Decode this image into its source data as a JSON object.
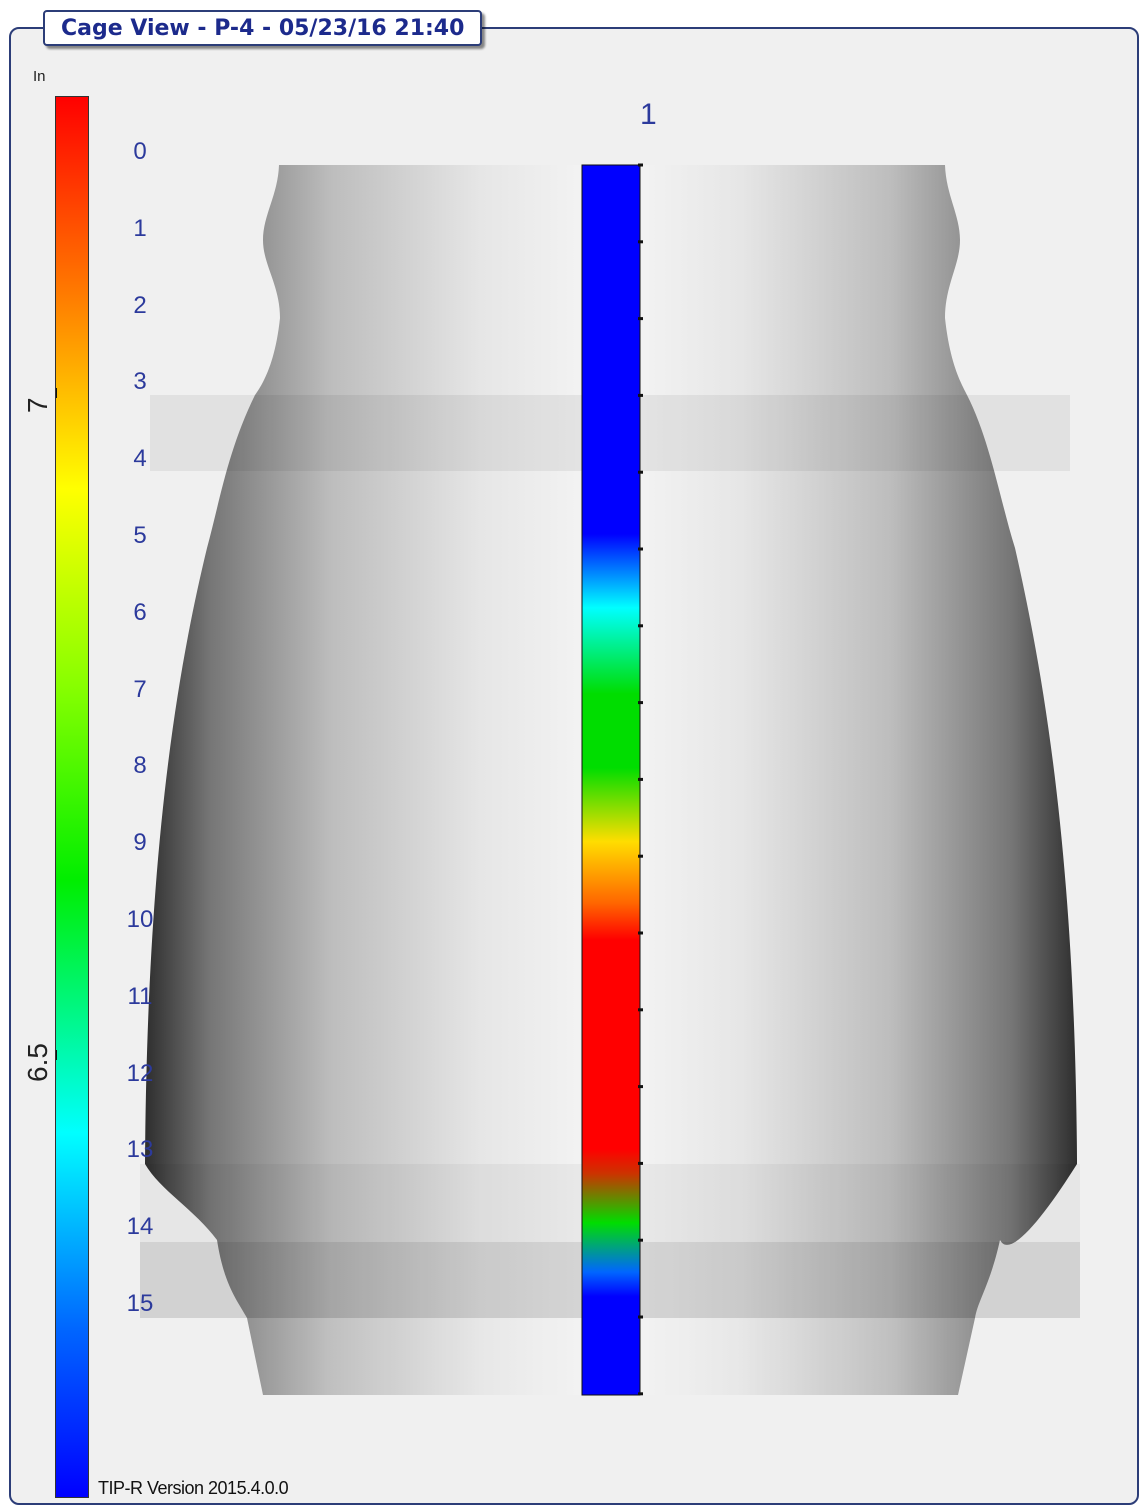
{
  "title": "Cage View - P-4 - 05/23/16 21:40",
  "colorbar": {
    "unit": "In",
    "labels": [
      "7",
      "6.5"
    ],
    "gradient": [
      "#ff0000",
      "#ff7a00",
      "#ffff00",
      "#88ff00",
      "#00ee00",
      "#00ffff",
      "#0066ff",
      "#0000ff"
    ]
  },
  "row_labels": [
    "0",
    "1",
    "2",
    "3",
    "4",
    "5",
    "6",
    "7",
    "8",
    "9",
    "10",
    "11",
    "12",
    "13",
    "14",
    "15"
  ],
  "column_labels": [
    "1"
  ],
  "strip_colors": {
    "base": "#0000ff",
    "cyan": "#00ffff",
    "green": "#00dd00",
    "yellow": "#ffdd00",
    "orange": "#ff6600",
    "red": "#ff0000"
  },
  "footer": {
    "version": "TIP-R Version 2015.4.0.0"
  }
}
